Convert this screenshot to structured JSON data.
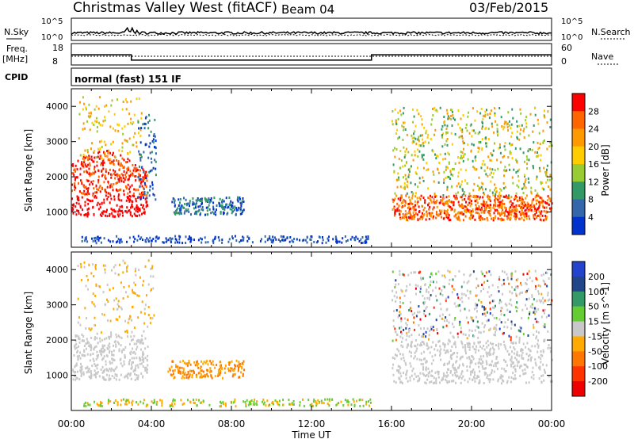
{
  "header": {
    "title": "Christmas Valley West (fitACF)",
    "beam": "Beam 04",
    "date": "03/Feb/2015"
  },
  "status_panel": {
    "nsky_label": "N.Sky",
    "nsearch_label": "N.Search",
    "nsky_axis": [
      "10^5",
      "10^0"
    ],
    "nsky_axis_right": [
      "10^5",
      "10^0"
    ],
    "freq_label": "Freq.",
    "freq_unit": "[MHz]",
    "freq_ticks": [
      "18",
      "8"
    ],
    "nave_label": "Nave",
    "nave_ticks": [
      "60",
      "0"
    ],
    "cpid_label": "CPID",
    "cpid_text": "normal (fast) 151 IF"
  },
  "chart_data": [
    {
      "type": "heatmap",
      "title": "",
      "ylabel": "Slant Range [km]",
      "yticks": [
        "4000",
        "3000",
        "2000",
        "1000"
      ],
      "xlabel": "",
      "colorbar_label": "Power [dB]",
      "colorbar_ticks": [
        "28",
        "24",
        "20",
        "16",
        "12",
        "8",
        "4"
      ],
      "colors": [
        "#ff0000",
        "#ff6600",
        "#ff9900",
        "#ffcc00",
        "#99cc33",
        "#339966",
        "#3366aa",
        "#0033cc"
      ],
      "notes": "Echoes ~1000–2500 km 00:00–04:00, ~1000–1400 km 05:00–08:30, and 16:00–24:00 spanning ~800–4000 km; ground scatter near-range 04:00–16:00."
    },
    {
      "type": "heatmap",
      "title": "",
      "ylabel": "Slant Range [km]",
      "yticks": [
        "4000",
        "3000",
        "2000",
        "1000"
      ],
      "xlabel": "Time UT",
      "xticks": [
        "00:00",
        "04:00",
        "08:00",
        "12:00",
        "16:00",
        "20:00",
        "00:00"
      ],
      "colorbar_label": "Velocity [m s^-1]",
      "colorbar_ticks": [
        "200",
        "100",
        "50",
        "15",
        "-15",
        "-50",
        "-100",
        "-200"
      ],
      "colors": [
        "#2244cc",
        "#224488",
        "#339966",
        "#66cc33",
        "#c8c8c8",
        "#ffaa00",
        "#ff7700",
        "#ff3300",
        "#ee0000"
      ],
      "notes": "Ground scatter shown grey; ionospheric echoes mostly -15 to -100 m/s (orange)."
    }
  ],
  "frequency": {
    "segments_hours": [
      [
        0,
        3,
        15
      ],
      [
        3,
        15,
        11
      ],
      [
        15,
        24,
        15
      ]
    ],
    "range_mhz": [
      8,
      18
    ]
  },
  "nave": {
    "typical": 30,
    "range": [
      0,
      60
    ]
  }
}
